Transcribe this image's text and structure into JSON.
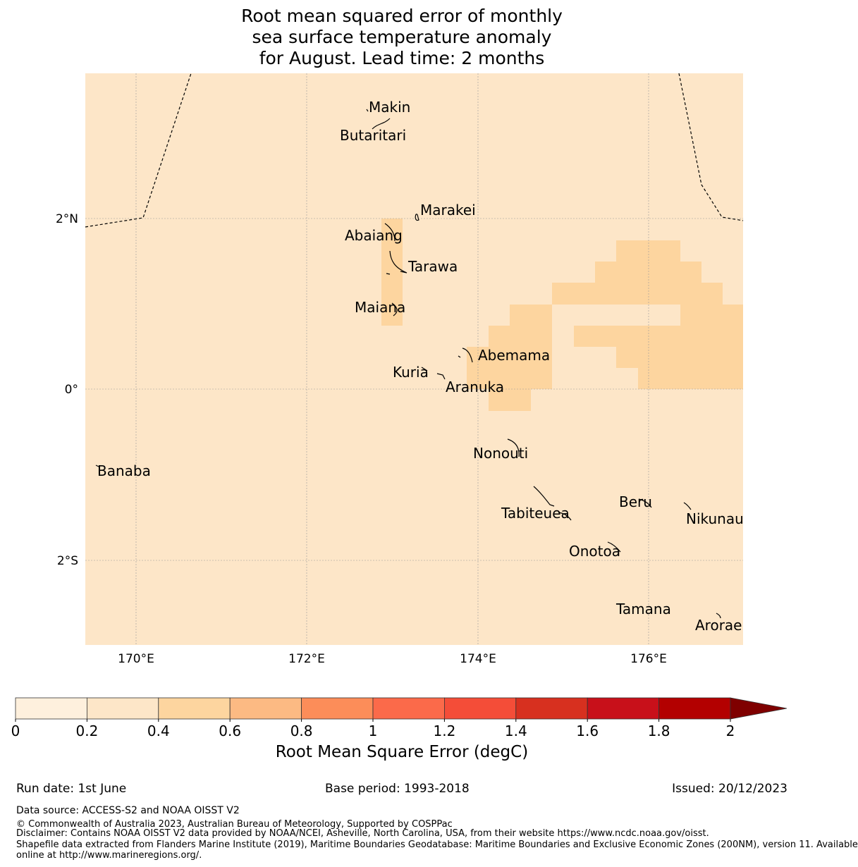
{
  "title": {
    "line1": "Root mean squared error of monthly",
    "line2": "sea surface temperature anomaly",
    "line3": "for August. Lead time: 2 months"
  },
  "map": {
    "background_color": "#fde6c8",
    "raised_cell_color": "#fdd59f",
    "lon_ticks": [
      "170°E",
      "172°E",
      "174°E",
      "176°E"
    ],
    "lat_ticks": [
      "2°N",
      "0°",
      "2°S"
    ],
    "islands": [
      {
        "name": "Makin"
      },
      {
        "name": "Butaritari"
      },
      {
        "name": "Marakei"
      },
      {
        "name": "Abaiang"
      },
      {
        "name": "Tarawa"
      },
      {
        "name": "Maiana"
      },
      {
        "name": "Abemama"
      },
      {
        "name": "Kuria"
      },
      {
        "name": "Aranuka"
      },
      {
        "name": "Nonouti"
      },
      {
        "name": "Banaba"
      },
      {
        "name": "Tabiteuea"
      },
      {
        "name": "Beru"
      },
      {
        "name": "Nikunau"
      },
      {
        "name": "Onotoa"
      },
      {
        "name": "Tamana"
      },
      {
        "name": "Arorae"
      }
    ]
  },
  "colorbar": {
    "title": "Root Mean Square Error (degC)",
    "ticks": [
      "0",
      "0.2",
      "0.4",
      "0.6",
      "0.8",
      "1",
      "1.2",
      "1.4",
      "1.6",
      "1.8",
      "2"
    ],
    "colors": [
      "#fef0dd",
      "#fde6c8",
      "#fdd59f",
      "#fcba83",
      "#fc8d59",
      "#fb6a4a",
      "#f44d38",
      "#d7301f",
      "#c8101a",
      "#b30000"
    ],
    "extend_color": "#7f0000"
  },
  "footer": {
    "run_date": "Run date: 1st June",
    "base_period": "Base period: 1993-2018",
    "issued": "Issued: 20/12/2023",
    "data_source": "Data source: ACCESS-S2 and NOAA OISST V2",
    "copyright": "© Commonwealth of Australia 2023, Australian Bureau of Meteorology, Supported by COSPPac",
    "disclaimer": "Disclaimer: Contains NOAA OISST V2 data provided by NOAA/NCEI, Asheville, North Carolina, USA, from their website https://www.ncdc.noaa.gov/oisst.",
    "shapefile1": "Shapefile data extracted from Flanders Marine Institute (2019), Maritime Boundaries Geodatabase: Maritime Boundaries and Exclusive Economic Zones (200NM), version 11. Available",
    "shapefile2": "online at http://www.marineregions.org/."
  }
}
